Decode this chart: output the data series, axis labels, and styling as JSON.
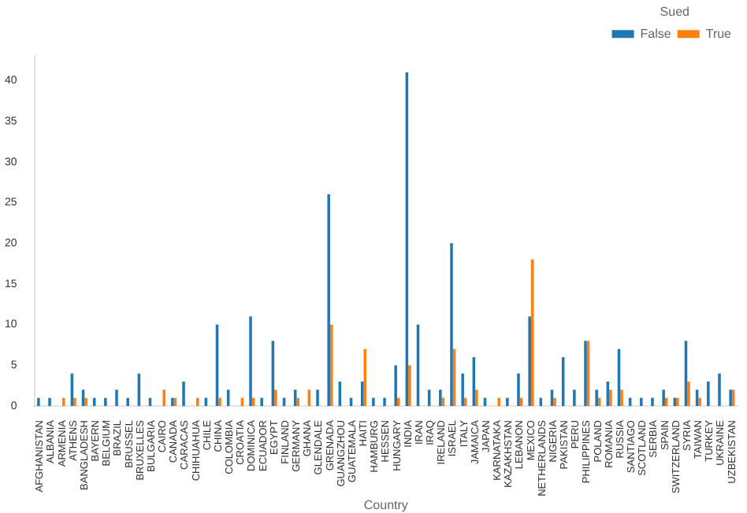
{
  "chart_data": {
    "type": "bar",
    "xlabel": "Country",
    "legend_title": "Sued",
    "legend": "top right",
    "grid": false,
    "categories": [
      "AFGHANISTAN",
      "ALBANIA",
      "ARMENIA",
      "ATHENS",
      "BANGLADESH",
      "BAYERN",
      "BELGIUM",
      "BRAZIL",
      "BRUSSEL",
      "BRUXELLES",
      "BULGARIA",
      "CAIRO",
      "CANADA",
      "CARACAS",
      "CHIHUAHUA",
      "CHILE",
      "CHINA",
      "COLOMBIA",
      "CROATIA",
      "DOMINICA",
      "ECUADOR",
      "EGYPT",
      "FINLAND",
      "GERMANY",
      "GHANA",
      "GLENDALE",
      "GRENADA",
      "GUANGZHOU",
      "GUATEMALA",
      "HAITI",
      "HAMBURG",
      "HESSEN",
      "HUNGARY",
      "INDIA",
      "IRAN",
      "IRAQ",
      "IRELAND",
      "ISRAEL",
      "ITALY",
      "JAMAICA",
      "JAPAN",
      "KARNATAKA",
      "KAZAKHSTAN",
      "LEBANON",
      "MEXICO",
      "NETHERLANDS",
      "NIGERIA",
      "PAKISTAN",
      "PERU",
      "PHILIPPINES",
      "POLAND",
      "ROMANIA",
      "RUSSIA",
      "SANTIAGO",
      "SCOTLAND",
      "SERBIA",
      "SPAIN",
      "SWITZERLAND",
      "SYRIA",
      "TAIWAN",
      "TURKEY",
      "UKRAINE",
      "UZBEKISTAN"
    ],
    "series": [
      {
        "name": "False",
        "color": "#1f77b4",
        "values": [
          1,
          1,
          null,
          4,
          2,
          1,
          1,
          2,
          1,
          4,
          1,
          null,
          1,
          3,
          null,
          1,
          10,
          2,
          null,
          11,
          1,
          8,
          1,
          2,
          null,
          2,
          26,
          3,
          1,
          3,
          1,
          1,
          5,
          41,
          10,
          2,
          2,
          20,
          4,
          6,
          1,
          null,
          1,
          4,
          11,
          1,
          2,
          6,
          2,
          8,
          2,
          3,
          7,
          1,
          1,
          1,
          2,
          1,
          8,
          2,
          3,
          4,
          2
        ]
      },
      {
        "name": "True",
        "color": "#ff7f0e",
        "values": [
          null,
          null,
          1,
          1,
          1,
          null,
          null,
          null,
          null,
          null,
          null,
          2,
          1,
          null,
          1,
          null,
          1,
          null,
          1,
          1,
          null,
          2,
          null,
          1,
          2,
          null,
          10,
          null,
          null,
          7,
          null,
          null,
          1,
          5,
          null,
          null,
          1,
          7,
          1,
          2,
          null,
          1,
          null,
          1,
          18,
          null,
          1,
          null,
          null,
          8,
          1,
          2,
          2,
          null,
          null,
          null,
          1,
          1,
          3,
          1,
          null,
          null,
          2
        ]
      }
    ],
    "ylim": [
      0,
      43
    ],
    "yticks": [
      0,
      5,
      10,
      15,
      20,
      25,
      30,
      35,
      40
    ]
  }
}
